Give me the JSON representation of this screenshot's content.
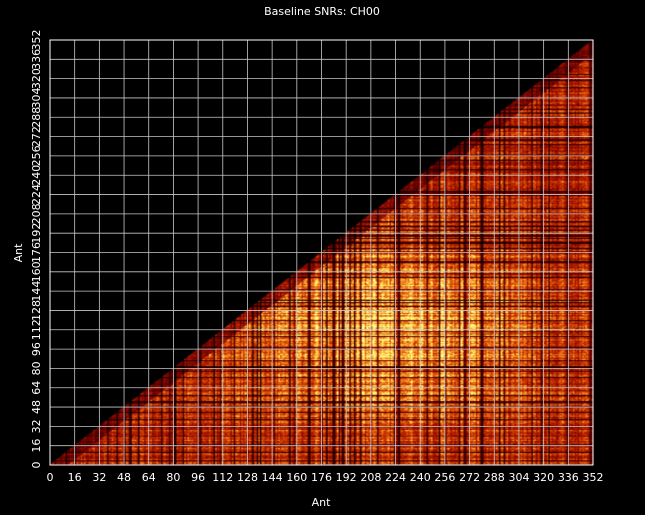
{
  "chart_data": {
    "type": "heatmap",
    "title": "Baseline SNRs: CH00",
    "xlabel": "Ant",
    "ylabel": "Ant",
    "xlim": [
      0,
      352
    ],
    "ylim": [
      0,
      352
    ],
    "x_ticks": [
      0,
      16,
      32,
      48,
      64,
      80,
      96,
      112,
      128,
      144,
      160,
      176,
      192,
      208,
      224,
      240,
      256,
      272,
      288,
      304,
      320,
      336,
      352
    ],
    "y_ticks": [
      0,
      16,
      32,
      48,
      64,
      80,
      96,
      112,
      128,
      144,
      160,
      176,
      192,
      208,
      224,
      240,
      256,
      272,
      288,
      304,
      320,
      336,
      352
    ],
    "grid": true,
    "region": "lower-triangle",
    "colormap": [
      "#000000",
      "#5a0000",
      "#a01000",
      "#d04000",
      "#f08020",
      "#ffd040",
      "#ffff90"
    ],
    "grid_color": "#c8c8c8"
  }
}
